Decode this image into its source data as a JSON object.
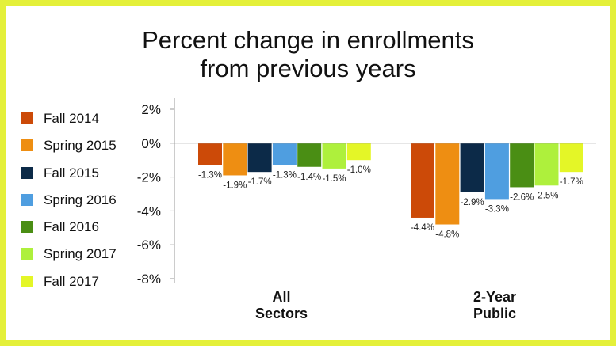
{
  "chart_data": {
    "type": "bar",
    "title": [
      "Percent change in enrollments",
      "from previous years"
    ],
    "categories": [
      [
        "All",
        "Sectors"
      ],
      [
        "2-Year",
        "Public"
      ]
    ],
    "y_ticks": [
      "2%",
      "0%",
      "-2%",
      "-4%",
      "-6%",
      "-8%"
    ],
    "ylim": [
      -8,
      2
    ],
    "legend_position": "left",
    "grid": false,
    "series": [
      {
        "name": "Fall 2014",
        "color": "#cc4a08",
        "values": [
          -1.3,
          -4.4
        ],
        "labels": [
          "-1.3%",
          "-4.4%"
        ]
      },
      {
        "name": "Spring 2015",
        "color": "#ee8e12",
        "values": [
          -1.9,
          -4.8
        ],
        "labels": [
          "-1.9%",
          "-4.8%"
        ]
      },
      {
        "name": "Fall 2015",
        "color": "#0c2a48",
        "values": [
          -1.7,
          -2.9
        ],
        "labels": [
          "-1.7%",
          "-2.9%"
        ]
      },
      {
        "name": "Spring 2016",
        "color": "#4f9ee0",
        "values": [
          -1.3,
          -3.3
        ],
        "labels": [
          "-1.3%",
          "-3.3%"
        ]
      },
      {
        "name": "Fall 2016",
        "color": "#4a8e14",
        "values": [
          -1.4,
          -2.6
        ],
        "labels": [
          "-1.4%",
          "-2.6%"
        ]
      },
      {
        "name": "Spring 2017",
        "color": "#aef03c",
        "values": [
          -1.5,
          -2.5
        ],
        "labels": [
          "-1.5%",
          "-2.5%"
        ]
      },
      {
        "name": "Fall 2017",
        "color": "#e4f627",
        "values": [
          -1.0,
          -1.7
        ],
        "labels": [
          "-1.0%",
          "-1.7%"
        ]
      }
    ]
  },
  "colors": {
    "frame_border": "#e4f03a",
    "axis": "#999999"
  }
}
